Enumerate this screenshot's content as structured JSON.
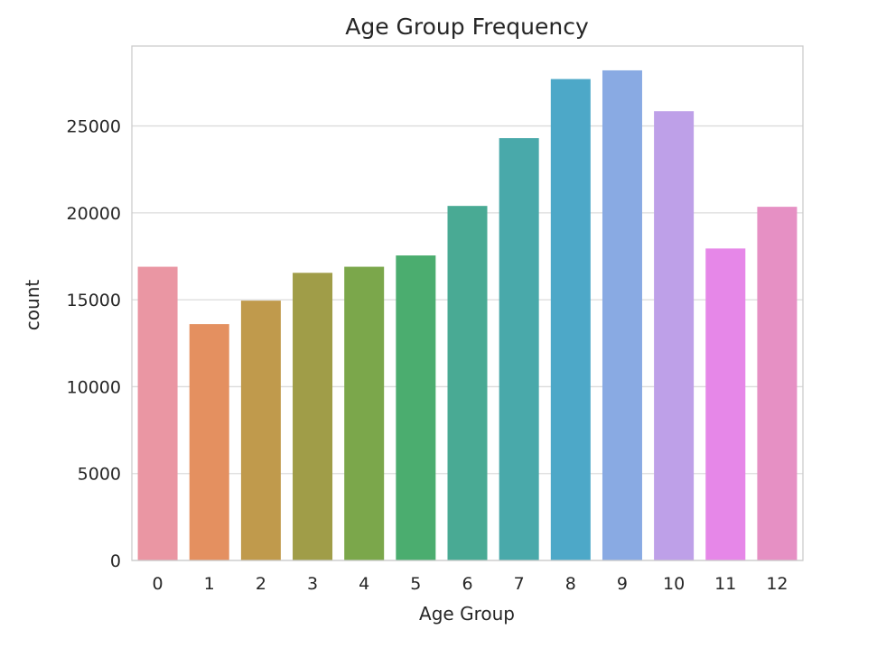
{
  "chart_data": {
    "type": "bar",
    "title": "Age Group Frequency",
    "xlabel": "Age Group",
    "ylabel": "count",
    "categories": [
      "0",
      "1",
      "2",
      "3",
      "4",
      "5",
      "6",
      "7",
      "8",
      "9",
      "10",
      "11",
      "12"
    ],
    "values": [
      16900,
      13600,
      14950,
      16550,
      16900,
      17550,
      20400,
      24300,
      27700,
      28200,
      25850,
      17950,
      20350
    ],
    "colors": [
      "#ea96a3",
      "#e49060",
      "#c09a4c",
      "#a09d48",
      "#7ba74b",
      "#4bad6f",
      "#49aa94",
      "#49a9aa",
      "#4da8c8",
      "#89aae3",
      "#bea0e8",
      "#e687e8",
      "#e690c4"
    ],
    "ylim": [
      0,
      29600
    ],
    "yticks": [
      0,
      5000,
      10000,
      15000,
      20000,
      25000
    ],
    "grid": true
  }
}
